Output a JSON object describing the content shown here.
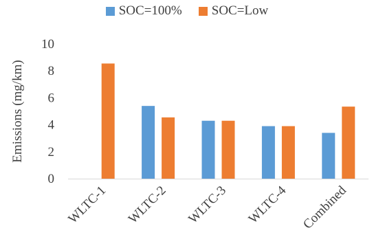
{
  "chart_data": {
    "type": "bar",
    "categories": [
      "WLTC-1",
      "WLTC-2",
      "WLTC-3",
      "WLTC-4",
      "Combined"
    ],
    "series": [
      {
        "name": "SOC=100%",
        "color": "#5B9BD5",
        "values": [
          null,
          5.4,
          4.3,
          3.9,
          3.4
        ]
      },
      {
        "name": "SOC=Low",
        "color": "#ED7D31",
        "values": [
          8.55,
          4.55,
          4.3,
          3.9,
          5.35
        ]
      }
    ],
    "ylabel": "Emissions (mg/km)",
    "ylim": [
      0,
      10
    ],
    "yticks": [
      0,
      2,
      4,
      6,
      8,
      10
    ],
    "grid": false,
    "legend_position": "top"
  }
}
